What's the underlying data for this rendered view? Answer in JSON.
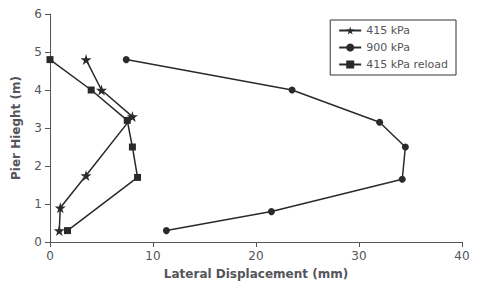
{
  "chart_data": {
    "type": "line",
    "x_label": "Lateral Displacement (mm)",
    "y_label": "Pier Hieght (m)",
    "xlim": [
      0,
      40
    ],
    "ylim": [
      0,
      6
    ],
    "xticks": [
      0,
      10,
      20,
      30,
      40
    ],
    "yticks": [
      0,
      1,
      2,
      3,
      4,
      5,
      6
    ],
    "grid": false,
    "legend": "upper right",
    "series": [
      {
        "name": "415 kPa",
        "color": "#2a2a2a",
        "marker": "star",
        "line_style": "solid",
        "x": [
          0.9,
          1.0,
          3.5,
          8.0,
          5.0,
          3.5
        ],
        "values": [
          0.3,
          0.9,
          1.75,
          3.3,
          4.0,
          4.8
        ]
      },
      {
        "name": "900 kPa",
        "color": "#2a2a2a",
        "marker": "circle",
        "line_style": "solid",
        "x": [
          11.3,
          21.5,
          34.2,
          34.5,
          32.0,
          23.5,
          7.4
        ],
        "values": [
          0.3,
          0.8,
          1.65,
          2.5,
          3.15,
          4.0,
          4.8
        ]
      },
      {
        "name": "415 kPa reload",
        "color": "#2a2a2a",
        "marker": "square",
        "line_style": "solid",
        "x": [
          1.7,
          8.5,
          8.0,
          7.5,
          4.0,
          0.0
        ],
        "values": [
          0.3,
          1.7,
          2.5,
          3.2,
          4.0,
          4.8
        ]
      }
    ]
  }
}
